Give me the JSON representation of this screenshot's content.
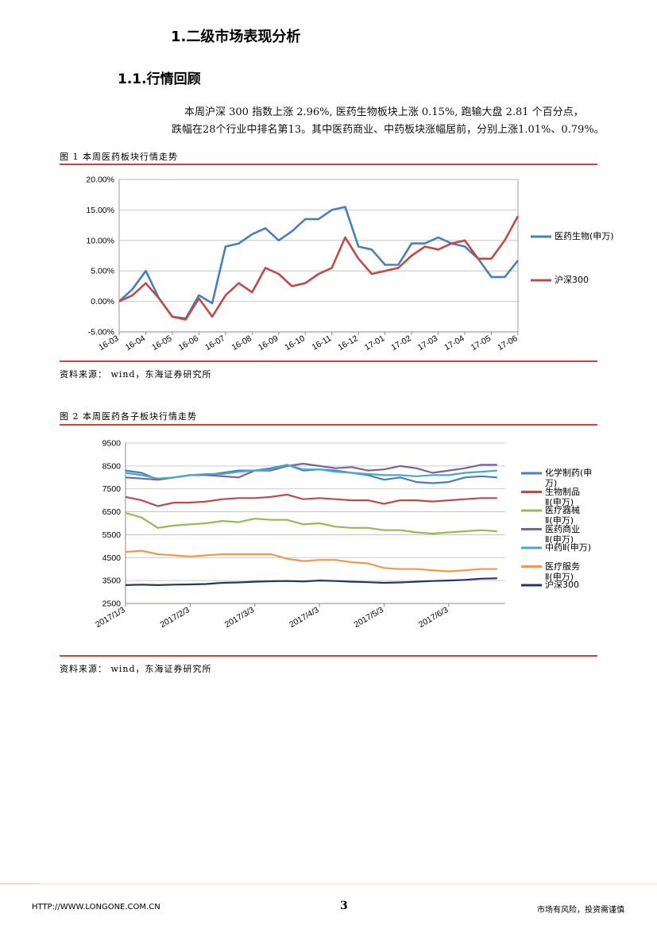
{
  "header": {
    "title": "1.二级市场表现分析",
    "subtitle": "1.1.行情回顾"
  },
  "paragraph": [
    "本周沪深 300 指数上涨 2.96%, 医药生物板块上涨 0.15%, 跑输大盘 2.81 个百分点，",
    "跌幅在28个行业中排名第13。其中医药商业、中药板块涨幅居前，分别上涨1.01%、0.79%。"
  ],
  "chart_data": [
    {
      "type": "line",
      "title": "图 1 本周医药板块行情走势",
      "source": "资料来源：  wind，东海证券研究所",
      "categories": [
        "16-03",
        null,
        "16-04",
        null,
        "16-05",
        null,
        "16-06",
        null,
        "16-07",
        null,
        "16-08",
        null,
        "16-09",
        null,
        "16-10",
        null,
        "16-11",
        null,
        "16-12",
        null,
        "17-01",
        null,
        "17-02",
        null,
        "17-03",
        null,
        "17-04",
        null,
        "17-05",
        null,
        "17-06"
      ],
      "ylim": [
        -5,
        20
      ],
      "yticks": [
        {
          "value": -5,
          "label": "-5.00%"
        },
        {
          "value": 0,
          "label": "0.00%"
        },
        {
          "value": 5,
          "label": "5.00%"
        },
        {
          "value": 10,
          "label": "10.00%"
        },
        {
          "value": 15,
          "label": "15.00%"
        },
        {
          "value": 20,
          "label": "20.00%"
        }
      ],
      "grid": true,
      "series": [
        {
          "name": "医药生物(申万)",
          "color": "#4a7ebb",
          "values": [
            0,
            2,
            5,
            0.5,
            -2.5,
            -2.8,
            1,
            -0.3,
            9,
            9.5,
            11,
            12,
            10,
            11.5,
            13.5,
            13.5,
            15,
            15.5,
            9,
            8.5,
            6,
            6,
            9.5,
            9.5,
            10.5,
            9.5,
            9,
            7,
            4,
            4,
            6.7
          ]
        },
        {
          "name": "沪深300",
          "color": "#be4b48",
          "values": [
            0,
            1,
            3,
            0.5,
            -2.5,
            -3,
            0.5,
            -2.5,
            1,
            3,
            1.5,
            5.5,
            4.5,
            2.5,
            3,
            4.5,
            5.5,
            10.5,
            7,
            4.5,
            5,
            5.5,
            7.5,
            9,
            8.5,
            9.5,
            10,
            7,
            7,
            10,
            14
          ]
        }
      ]
    },
    {
      "type": "line",
      "title": "图 2 本周医药各子板块行情走势",
      "source": "资料来源：  wind，东海证券研究所",
      "categories": [
        "2017/1/3",
        null,
        null,
        null,
        "2017/2/3",
        null,
        null,
        null,
        "2017/3/3",
        null,
        null,
        null,
        "2017/4/3",
        null,
        null,
        null,
        "2017/5/3",
        null,
        null,
        null,
        "2017/6/3",
        null,
        null,
        null
      ],
      "ylim": [
        2500,
        9500
      ],
      "yticks": [
        2500,
        3500,
        4500,
        5500,
        6500,
        7500,
        8500,
        9500
      ],
      "grid": true,
      "series": [
        {
          "name": "化学制药(申万)",
          "color": "#4a7ebb",
          "values": [
            8300,
            8200,
            7900,
            8000,
            8100,
            8100,
            8200,
            8300,
            8300,
            8400,
            8550,
            8300,
            8350,
            8300,
            8200,
            8100,
            7900,
            8000,
            7800,
            7750,
            7800,
            8000,
            8050,
            8000
          ]
        },
        {
          "name": "生物制品Ⅱ(申万)",
          "color": "#be4b48",
          "values": [
            7150,
            7000,
            6750,
            6900,
            6900,
            6950,
            7050,
            7100,
            7100,
            7150,
            7250,
            7050,
            7100,
            7050,
            7000,
            7000,
            6850,
            7000,
            7000,
            6950,
            7000,
            7050,
            7100,
            7100
          ]
        },
        {
          "name": "医疗器械Ⅱ(申万)",
          "color": "#98b954",
          "values": [
            6450,
            6250,
            5800,
            5900,
            5950,
            6000,
            6100,
            6050,
            6200,
            6150,
            6150,
            5950,
            6000,
            5850,
            5800,
            5800,
            5700,
            5700,
            5600,
            5550,
            5600,
            5650,
            5700,
            5650
          ]
        },
        {
          "name": "医药商业Ⅱ(申万)",
          "color": "#7d60a0",
          "values": [
            8000,
            7950,
            7900,
            8000,
            8100,
            8100,
            8050,
            8000,
            8300,
            8300,
            8500,
            8600,
            8500,
            8400,
            8450,
            8300,
            8350,
            8500,
            8400,
            8200,
            8300,
            8400,
            8550,
            8550
          ]
        },
        {
          "name": "中药Ⅱ(申万)",
          "color": "#46aac5",
          "values": [
            8200,
            8100,
            7950,
            8000,
            8100,
            8150,
            8150,
            8250,
            8300,
            8350,
            8550,
            8350,
            8350,
            8250,
            8200,
            8150,
            8100,
            8100,
            8050,
            8100,
            8100,
            8200,
            8250,
            8300
          ]
        },
        {
          "name": "医疗服务Ⅱ(申万)",
          "color": "#f79646",
          "values": [
            4750,
            4800,
            4650,
            4600,
            4550,
            4600,
            4650,
            4650,
            4650,
            4650,
            4450,
            4350,
            4400,
            4400,
            4300,
            4250,
            4050,
            4000,
            4000,
            3950,
            3900,
            3950,
            4000,
            4000
          ]
        },
        {
          "name": "沪深300",
          "color": "#1f3864",
          "values": [
            3300,
            3320,
            3300,
            3320,
            3330,
            3350,
            3400,
            3420,
            3450,
            3470,
            3480,
            3460,
            3500,
            3480,
            3450,
            3430,
            3400,
            3420,
            3450,
            3480,
            3500,
            3530,
            3580,
            3600
          ]
        }
      ]
    }
  ],
  "footer": {
    "url": "HTTP://WWW.LONGONE.COM.CN",
    "page": "3",
    "disclaimer": "市场有风险，投资需谨慎"
  }
}
